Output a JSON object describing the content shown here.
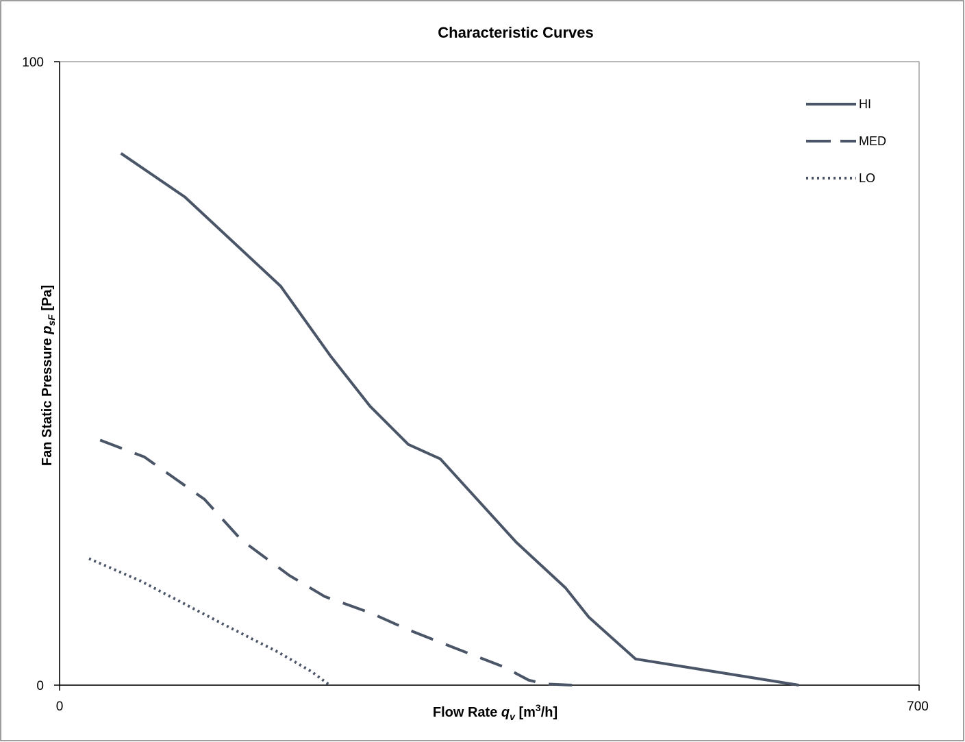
{
  "chart_data": {
    "type": "line",
    "title": "Characteristic Curves",
    "xlabel": {
      "prefix": "Flow Rate ",
      "symbol": "q",
      "sub": "v",
      "pre_sup": " [m",
      "sup": "3",
      "post": "/h]"
    },
    "ylabel": {
      "prefix": "Fan Static Pressure ",
      "symbol": "p",
      "sub": "sF",
      "post": " [Pa]"
    },
    "xlim": [
      0,
      700
    ],
    "ylim": [
      0,
      100
    ],
    "xticks": [
      "0",
      "700"
    ],
    "yticks": [
      "0",
      "100"
    ],
    "grid": false,
    "legend_position": "top-right",
    "line_color": "#4a5568",
    "series": [
      {
        "name": "HI",
        "style": "solid",
        "points": [
          [
            50,
            85.3
          ],
          [
            102,
            78.3
          ],
          [
            180,
            64.0
          ],
          [
            221,
            52.7
          ],
          [
            253,
            44.7
          ],
          [
            284,
            38.6
          ],
          [
            310,
            36.3
          ],
          [
            372,
            22.9
          ],
          [
            412,
            15.6
          ],
          [
            431,
            10.9
          ],
          [
            469,
            4.2
          ],
          [
            602,
            0
          ]
        ]
      },
      {
        "name": "MED",
        "style": "dashed",
        "points": [
          [
            33,
            39.3
          ],
          [
            69,
            36.6
          ],
          [
            118,
            29.8
          ],
          [
            148,
            23.3
          ],
          [
            187,
            17.6
          ],
          [
            216,
            14.2
          ],
          [
            253,
            11.6
          ],
          [
            285,
            8.8
          ],
          [
            320,
            6.1
          ],
          [
            362,
            2.9
          ],
          [
            382,
            0.8
          ],
          [
            395,
            0.2
          ],
          [
            418,
            0
          ]
        ]
      },
      {
        "name": "LO",
        "style": "dotted",
        "points": [
          [
            24,
            20.3
          ],
          [
            65,
            16.8
          ],
          [
            102,
            13.0
          ],
          [
            135,
            9.6
          ],
          [
            178,
            5.3
          ],
          [
            205,
            2.2
          ],
          [
            220,
            0
          ]
        ]
      }
    ]
  }
}
